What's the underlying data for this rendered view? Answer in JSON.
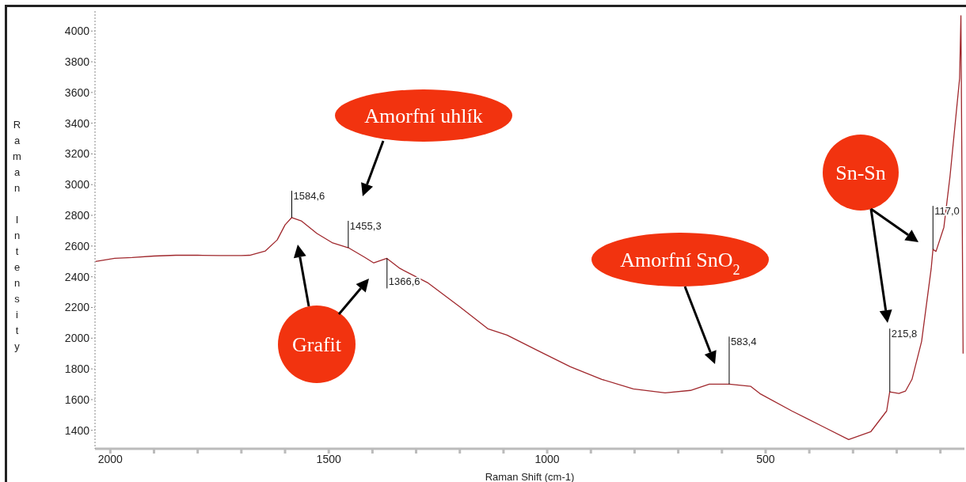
{
  "chart_data": {
    "type": "line",
    "xlabel": "Raman Shift (cm-1)",
    "ylabel": "Raman Intensity",
    "x": [
      2034,
      1990,
      1950,
      1900,
      1850,
      1800,
      1750,
      1700,
      1681,
      1645,
      1618,
      1600,
      1585,
      1563,
      1527,
      1491,
      1455,
      1418,
      1397,
      1367,
      1337,
      1274,
      1201,
      1136,
      1092,
      1020,
      947,
      875,
      803,
      730,
      672,
      629,
      583,
      534,
      513,
      440,
      368,
      310,
      259,
      223,
      216,
      195,
      180,
      165,
      143,
      121,
      117,
      110,
      92,
      78,
      56,
      53,
      48
    ],
    "series": [
      {
        "color": "#a0282d",
        "values": [
          2500,
          2520,
          2525,
          2535,
          2540,
          2540,
          2538,
          2538,
          2540,
          2568,
          2640,
          2738,
          2785,
          2764,
          2682,
          2620,
          2589,
          2527,
          2490,
          2520,
          2454,
          2362,
          2206,
          2062,
          2020,
          1917,
          1814,
          1732,
          1670,
          1644,
          1660,
          1701,
          1701,
          1686,
          1639,
          1526,
          1423,
          1340,
          1392,
          1526,
          1650,
          1640,
          1655,
          1732,
          1979,
          2454,
          2578,
          2565,
          2722,
          3053,
          3692,
          4100,
          1900
        ]
      }
    ],
    "xlim": [
      2035,
      45
    ],
    "ylim": [
      1280,
      4130
    ],
    "xticks": [
      {
        "value": 2000,
        "label": "2000"
      },
      {
        "value": 1900,
        "label": null
      },
      {
        "value": 1800,
        "label": null
      },
      {
        "value": 1700,
        "label": null
      },
      {
        "value": 1600,
        "label": null
      },
      {
        "value": 1500,
        "label": "1500"
      },
      {
        "value": 1400,
        "label": null
      },
      {
        "value": 1300,
        "label": null
      },
      {
        "value": 1200,
        "label": null
      },
      {
        "value": 1100,
        "label": null
      },
      {
        "value": 1000,
        "label": "1000"
      },
      {
        "value": 900,
        "label": null
      },
      {
        "value": 800,
        "label": null
      },
      {
        "value": 700,
        "label": null
      },
      {
        "value": 600,
        "label": null
      },
      {
        "value": 500,
        "label": "500"
      },
      {
        "value": 400,
        "label": null
      },
      {
        "value": 300,
        "label": null
      },
      {
        "value": 200,
        "label": null
      },
      {
        "value": 100,
        "label": null
      }
    ],
    "yticks": [
      1400,
      1600,
      1800,
      2000,
      2200,
      2400,
      2600,
      2800,
      3000,
      3200,
      3400,
      3600,
      3800,
      4000
    ],
    "grid": false,
    "legend": false,
    "marker": "none",
    "line_style": "solid",
    "annotations": [
      {
        "text": "1584,6",
        "x": 1584.6,
        "y": 2785
      },
      {
        "text": "1455,3",
        "x": 1455.3,
        "y": 2589
      },
      {
        "text": "1366,6",
        "x": 1366.6,
        "y": 2520
      },
      {
        "text": "583,4",
        "x": 583.4,
        "y": 1701
      },
      {
        "text": "215,8",
        "x": 215.8,
        "y": 1650
      },
      {
        "text": "117,0",
        "x": 117.0,
        "y": 2578
      },
      "Amorfní uhlík",
      "Grafit",
      "Amorfní SnO$_{2}$",
      "Sn-Sn"
    ]
  }
}
